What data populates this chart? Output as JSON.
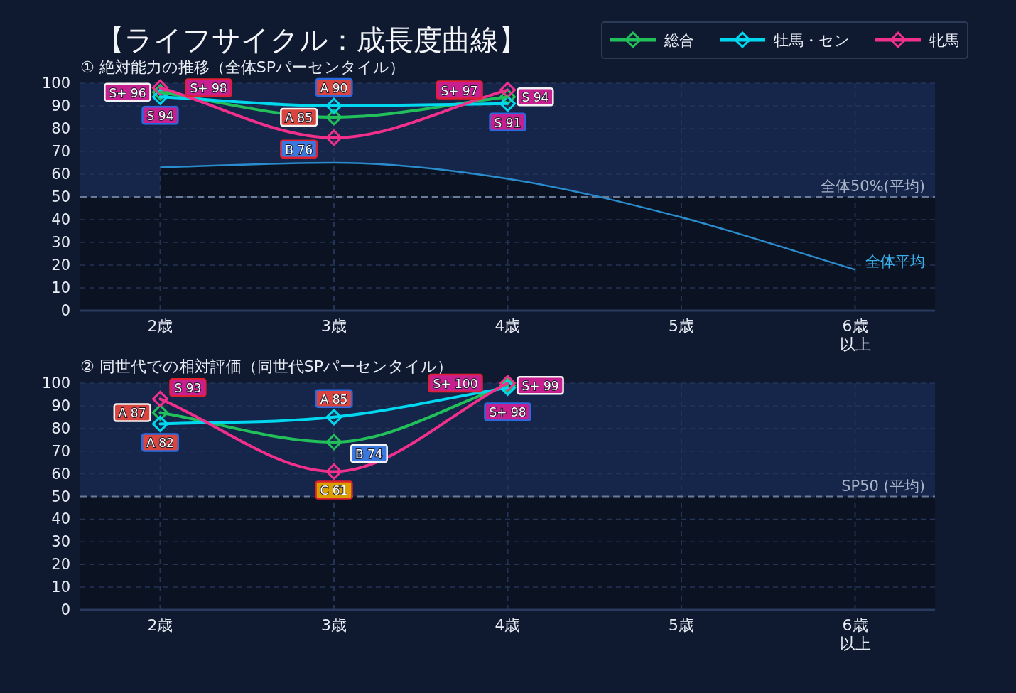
{
  "chart_data": [
    {
      "type": "line",
      "title": "【ライフサイクル：成長度曲線】",
      "subtitle": "① 絶対能力の推移（全体SPパーセンタイル）",
      "categories": [
        "2歳",
        "3歳",
        "4歳",
        "5歳",
        "6歳以上"
      ],
      "series": [
        {
          "name": "総合",
          "color": "#22c05a",
          "values": [
            96,
            85,
            94,
            null,
            null
          ],
          "value_labels": [
            "S+ 96",
            "A 85",
            "S 94",
            null,
            null
          ]
        },
        {
          "name": "牡馬・セン",
          "color": "#00d8f0",
          "values": [
            94,
            90,
            91,
            null,
            null
          ],
          "value_labels": [
            "S 94",
            "A 90",
            "S 91",
            null,
            null
          ]
        },
        {
          "name": "牝馬",
          "color": "#f0308a",
          "values": [
            98,
            76,
            97,
            null,
            null
          ],
          "value_labels": [
            "S+ 98",
            "B 76",
            "S+ 97",
            null,
            null
          ]
        },
        {
          "name": "全体平均",
          "type": "area",
          "marker": "none",
          "color": "#2a8ccc",
          "values": [
            63,
            65,
            58,
            41,
            18
          ]
        }
      ],
      "ylim": [
        0,
        100
      ],
      "yticks": [
        0,
        10,
        20,
        30,
        40,
        50,
        60,
        70,
        80,
        90,
        100
      ],
      "grid": true,
      "legend": "top right",
      "marker": "diamond",
      "ref_lines": [
        {
          "axis": "y",
          "value": 50,
          "label": "全体50%(平均)",
          "color": "#6b7a96",
          "line_style": "dashed"
        }
      ],
      "bands": [
        {
          "axis": "y",
          "from": 50,
          "to": 100,
          "color": "#15264a"
        }
      ]
    },
    {
      "type": "line",
      "title": "② 同世代での相対評価（同世代SPパーセンタイル）",
      "categories": [
        "2歳",
        "3歳",
        "4歳",
        "5歳",
        "6歳以上"
      ],
      "series": [
        {
          "name": "総合",
          "color": "#22c05a",
          "values": [
            87,
            74,
            99,
            null,
            null
          ],
          "value_labels": [
            "A 87",
            "B 74",
            "S+ 99",
            null,
            null
          ]
        },
        {
          "name": "牡馬・セン",
          "color": "#00d8f0",
          "values": [
            82,
            85,
            98,
            null,
            null
          ],
          "value_labels": [
            "A 82",
            "A 85",
            "S+ 98",
            null,
            null
          ]
        },
        {
          "name": "牝馬",
          "color": "#f0308a",
          "values": [
            93,
            61,
            100,
            null,
            null
          ],
          "value_labels": [
            "S 93",
            "C 61",
            "S+ 100",
            null,
            null
          ]
        }
      ],
      "ylim": [
        0,
        100
      ],
      "yticks": [
        0,
        10,
        20,
        30,
        40,
        50,
        60,
        70,
        80,
        90,
        100
      ],
      "grid": true,
      "marker": "diamond",
      "ref_lines": [
        {
          "axis": "y",
          "value": 50,
          "label": "SP50 (平均)",
          "color": "#6b7a96",
          "line_style": "dashed"
        }
      ],
      "bands": [
        {
          "axis": "y",
          "from": 50,
          "to": 100,
          "color": "#15264a"
        }
      ]
    }
  ]
}
